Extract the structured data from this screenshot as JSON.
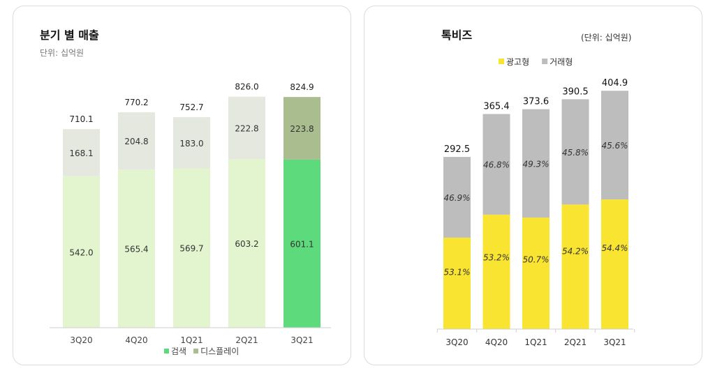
{
  "chart_data": [
    {
      "type": "bar",
      "stacked": true,
      "title": "분기 별 매출",
      "unit_label": "단위: 십억원",
      "categories": [
        "3Q20",
        "4Q20",
        "1Q21",
        "2Q21",
        "3Q21"
      ],
      "series": [
        {
          "name": "검색",
          "values": [
            542.0,
            565.4,
            569.7,
            603.2,
            601.1
          ]
        },
        {
          "name": "디스플레이",
          "values": [
            168.1,
            204.8,
            183.0,
            222.8,
            223.8
          ]
        }
      ],
      "totals": [
        710.1,
        770.2,
        752.7,
        826.0,
        824.9
      ],
      "value_labels": {
        "검색": [
          "542.0",
          "565.4",
          "569.7",
          "603.2",
          "601.1"
        ],
        "디스플레이": [
          "168.1",
          "204.8",
          "183.0",
          "222.8",
          "223.8"
        ],
        "totals": [
          "710.1",
          "770.2",
          "752.7",
          "826.0",
          "824.9"
        ]
      },
      "highlight_index": 4,
      "colors": {
        "검색": "#e2f5cf",
        "디스플레이": "#e5e8df",
        "검색_highlight": "#5ddb7c",
        "디스플레이_highlight": "#a9bd8f",
        "legend_검색": "#5ddb7c",
        "legend_디스플레이": "#a9bd8f"
      },
      "legend": [
        "검색",
        "디스플레이"
      ],
      "ylim": [
        0,
        900
      ]
    },
    {
      "type": "bar",
      "stacked": true,
      "title": "톡비즈",
      "unit_label": "(단위: 십억원)",
      "categories": [
        "3Q20",
        "4Q20",
        "1Q21",
        "2Q21",
        "3Q21"
      ],
      "totals": [
        292.5,
        365.4,
        373.6,
        390.5,
        404.9
      ],
      "total_labels": [
        "292.5",
        "365.4",
        "373.6",
        "390.5",
        "404.9"
      ],
      "series": [
        {
          "name": "광고형",
          "percent": [
            53.1,
            53.2,
            50.7,
            54.2,
            54.4
          ],
          "labels": [
            "53.1%",
            "53.2%",
            "50.7%",
            "54.2%",
            "54.4%"
          ]
        },
        {
          "name": "거래형",
          "percent": [
            46.9,
            46.8,
            49.3,
            45.8,
            45.6
          ],
          "labels": [
            "46.9%",
            "46.8%",
            "49.3%",
            "45.8%",
            "45.6%"
          ]
        }
      ],
      "colors": {
        "광고형": "#f9e431",
        "거래형": "#bdbdbd"
      },
      "legend": [
        "광고형",
        "거래형"
      ],
      "ylim": [
        0,
        430
      ]
    }
  ]
}
